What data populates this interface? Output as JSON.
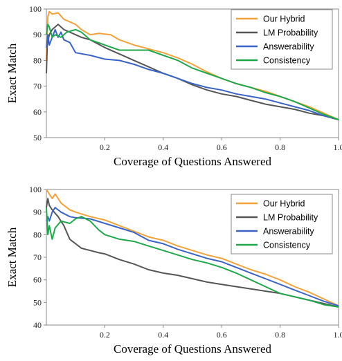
{
  "chart_data": [
    {
      "type": "line",
      "xlabel": "Coverage of Questions Answered",
      "ylabel": "Exact Match",
      "xlim": [
        0,
        1.0
      ],
      "ylim": [
        50,
        100
      ],
      "xticks": [
        "0.2",
        "0.4",
        "0.6",
        "0.8",
        "1.0"
      ],
      "yticks": [
        "50",
        "60",
        "70",
        "80",
        "90",
        "100"
      ],
      "legend_position": "top-right",
      "series": [
        {
          "name": "Our Hybrid",
          "color": "#f4a13a",
          "x": [
            0.0,
            0.005,
            0.01,
            0.02,
            0.04,
            0.06,
            0.08,
            0.1,
            0.12,
            0.15,
            0.18,
            0.22,
            0.25,
            0.3,
            0.35,
            0.4,
            0.45,
            0.5,
            0.55,
            0.6,
            0.65,
            0.7,
            0.75,
            0.8,
            0.85,
            0.9,
            0.95,
            1.0
          ],
          "y": [
            80,
            97,
            99,
            98,
            98.5,
            96,
            95,
            94,
            92,
            90,
            90.5,
            90,
            88,
            86,
            84.5,
            83,
            81,
            78.5,
            75.5,
            73,
            71,
            69.5,
            68,
            66,
            64,
            62,
            59.5,
            57
          ]
        },
        {
          "name": "LM Probability",
          "color": "#555555",
          "x": [
            0.0,
            0.003,
            0.01,
            0.02,
            0.04,
            0.06,
            0.08,
            0.1,
            0.12,
            0.15,
            0.2,
            0.25,
            0.3,
            0.35,
            0.4,
            0.45,
            0.5,
            0.55,
            0.6,
            0.65,
            0.7,
            0.75,
            0.8,
            0.85,
            0.9,
            0.95,
            1.0
          ],
          "y": [
            75,
            86,
            90,
            92,
            94,
            92,
            91,
            90,
            89,
            88,
            85,
            82.5,
            80,
            77.5,
            75,
            73,
            70.5,
            68.5,
            67,
            66,
            64.5,
            63,
            62,
            61,
            59.5,
            58.5,
            57
          ]
        },
        {
          "name": "Answerability",
          "color": "#3a63c8",
          "x": [
            0.0,
            0.005,
            0.01,
            0.02,
            0.03,
            0.04,
            0.05,
            0.06,
            0.08,
            0.1,
            0.15,
            0.2,
            0.25,
            0.3,
            0.35,
            0.4,
            0.45,
            0.5,
            0.55,
            0.6,
            0.65,
            0.7,
            0.75,
            0.8,
            0.85,
            0.9,
            0.95,
            1.0
          ],
          "y": [
            85,
            90,
            86,
            89,
            92,
            89,
            91,
            88,
            87,
            83,
            82,
            80.5,
            80,
            78.5,
            76.5,
            75,
            73,
            71,
            69.5,
            68.5,
            67,
            66,
            65,
            63.5,
            62,
            60.5,
            58.5,
            57
          ]
        },
        {
          "name": "Consistency",
          "color": "#1ea84a",
          "x": [
            0.0,
            0.005,
            0.01,
            0.02,
            0.03,
            0.05,
            0.07,
            0.1,
            0.12,
            0.15,
            0.2,
            0.25,
            0.3,
            0.35,
            0.4,
            0.45,
            0.5,
            0.55,
            0.6,
            0.65,
            0.7,
            0.75,
            0.8,
            0.85,
            0.9,
            0.95,
            1.0
          ],
          "y": [
            90,
            94,
            93,
            89,
            90,
            89,
            91,
            92,
            91,
            88,
            86,
            84,
            84,
            84,
            82,
            80,
            77,
            75,
            73,
            71,
            69.5,
            67.5,
            66,
            64,
            61.5,
            59,
            57
          ]
        }
      ]
    },
    {
      "type": "line",
      "xlabel": "Coverage of Questions Answered",
      "ylabel": "Exact Match",
      "xlim": [
        0,
        1.0
      ],
      "ylim": [
        40,
        100
      ],
      "xticks": [
        "0.2",
        "0.4",
        "0.6",
        "0.8",
        "1.0"
      ],
      "yticks": [
        "40",
        "50",
        "60",
        "70",
        "80",
        "90",
        "100"
      ],
      "legend_position": "top-right",
      "series": [
        {
          "name": "Our Hybrid",
          "color": "#f4a13a",
          "x": [
            0.0,
            0.005,
            0.01,
            0.02,
            0.03,
            0.05,
            0.08,
            0.1,
            0.15,
            0.2,
            0.25,
            0.3,
            0.35,
            0.4,
            0.45,
            0.5,
            0.55,
            0.6,
            0.65,
            0.7,
            0.75,
            0.8,
            0.85,
            0.9,
            0.95,
            1.0
          ],
          "y": [
            100,
            99,
            98,
            96,
            98,
            94,
            91,
            90,
            88,
            86.5,
            84,
            81.5,
            79,
            77.5,
            75,
            73,
            71,
            69.5,
            67,
            64.5,
            62.5,
            60,
            57,
            54.5,
            51.5,
            48.5
          ]
        },
        {
          "name": "LM Probability",
          "color": "#555555",
          "x": [
            0.0,
            0.005,
            0.01,
            0.02,
            0.04,
            0.06,
            0.08,
            0.1,
            0.12,
            0.15,
            0.18,
            0.2,
            0.25,
            0.3,
            0.35,
            0.4,
            0.45,
            0.5,
            0.55,
            0.6,
            0.65,
            0.7,
            0.75,
            0.8,
            0.85,
            0.9,
            0.95,
            1.0
          ],
          "y": [
            92,
            96,
            93,
            91,
            88,
            84,
            78,
            76,
            74,
            73,
            72,
            71.5,
            69,
            67,
            64.5,
            63,
            62,
            60.5,
            59,
            58,
            57,
            56,
            55,
            54,
            52.5,
            51,
            49.5,
            48
          ]
        },
        {
          "name": "Answerability",
          "color": "#3a63c8",
          "x": [
            0.0,
            0.005,
            0.01,
            0.02,
            0.03,
            0.05,
            0.08,
            0.1,
            0.15,
            0.2,
            0.25,
            0.3,
            0.35,
            0.4,
            0.45,
            0.5,
            0.55,
            0.6,
            0.65,
            0.7,
            0.75,
            0.8,
            0.85,
            0.9,
            0.95,
            1.0
          ],
          "y": [
            86,
            88,
            86,
            90,
            92,
            90,
            88,
            87.5,
            87,
            85,
            83,
            81,
            77.5,
            76,
            73.5,
            71.5,
            69.5,
            68,
            65.5,
            63,
            60.5,
            58,
            55.5,
            53,
            50.5,
            48.5
          ]
        },
        {
          "name": "Consistency",
          "color": "#1ea84a",
          "x": [
            0.0,
            0.005,
            0.01,
            0.02,
            0.03,
            0.05,
            0.08,
            0.1,
            0.12,
            0.15,
            0.18,
            0.2,
            0.25,
            0.3,
            0.35,
            0.4,
            0.45,
            0.5,
            0.55,
            0.6,
            0.65,
            0.7,
            0.75,
            0.8,
            0.85,
            0.9,
            0.95,
            1.0
          ],
          "y": [
            92,
            80,
            84,
            78,
            83,
            86,
            85,
            87,
            88,
            86,
            82,
            80,
            78,
            77,
            75,
            73,
            71,
            69,
            67.5,
            65.5,
            63,
            60,
            57,
            54,
            52.5,
            51,
            49,
            48
          ]
        }
      ]
    }
  ]
}
